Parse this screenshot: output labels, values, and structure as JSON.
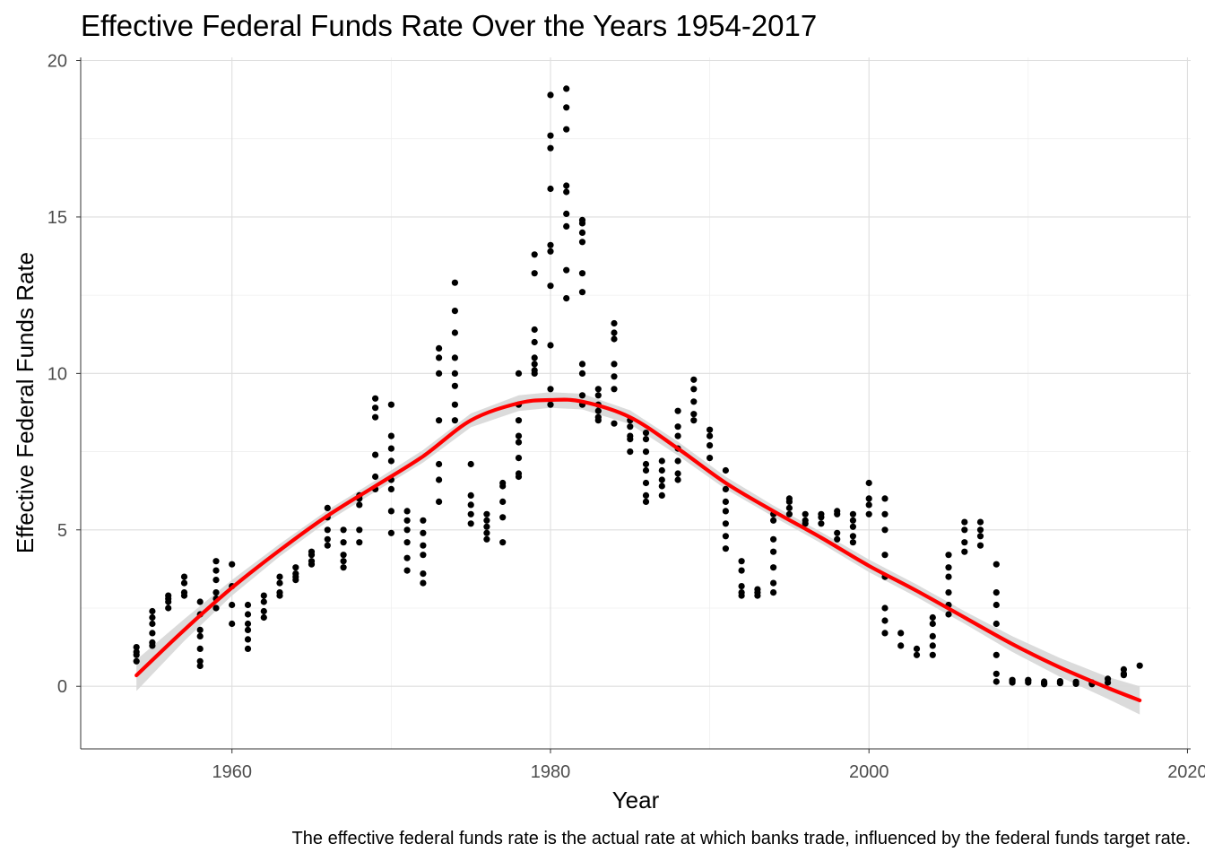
{
  "chart_data": {
    "type": "scatter",
    "title": "Effective Federal Funds Rate Over the Years 1954-2017",
    "xlabel": "Year",
    "ylabel": "Effective Federal Funds Rate",
    "caption": "The effective federal funds rate is the actual rate at which banks trade, influenced by the federal funds target rate.",
    "xlim": [
      1950.5,
      2020.2
    ],
    "ylim": [
      -2,
      20.1
    ],
    "x_ticks": [
      1960,
      1980,
      2000,
      2020
    ],
    "x_tick_labels": [
      "1960",
      "1980",
      "2000",
      "2020"
    ],
    "y_ticks": [
      0,
      5,
      10,
      15,
      20
    ],
    "y_tick_labels": [
      "0",
      "5",
      "10",
      "15",
      "20"
    ],
    "grid": true,
    "legend": "none",
    "points_color": "#000000",
    "trend_color": "#ff0000",
    "band_color": "#d9d9d9",
    "scatter": [
      [
        1954,
        1.25
      ],
      [
        1954,
        1.0
      ],
      [
        1954,
        0.8
      ],
      [
        1954,
        1.1
      ],
      [
        1955,
        1.4
      ],
      [
        1955,
        1.3
      ],
      [
        1955,
        1.7
      ],
      [
        1955,
        2.0
      ],
      [
        1955,
        2.2
      ],
      [
        1955,
        2.4
      ],
      [
        1956,
        2.5
      ],
      [
        1956,
        2.7
      ],
      [
        1956,
        2.8
      ],
      [
        1956,
        2.9
      ],
      [
        1957,
        2.9
      ],
      [
        1957,
        3.0
      ],
      [
        1957,
        3.3
      ],
      [
        1957,
        3.5
      ],
      [
        1958,
        0.65
      ],
      [
        1958,
        0.8
      ],
      [
        1958,
        1.2
      ],
      [
        1958,
        1.6
      ],
      [
        1958,
        1.8
      ],
      [
        1958,
        2.3
      ],
      [
        1958,
        2.7
      ],
      [
        1959,
        2.5
      ],
      [
        1959,
        2.8
      ],
      [
        1959,
        3.0
      ],
      [
        1959,
        3.4
      ],
      [
        1959,
        3.7
      ],
      [
        1959,
        4.0
      ],
      [
        1960,
        2.0
      ],
      [
        1960,
        2.6
      ],
      [
        1960,
        3.2
      ],
      [
        1960,
        3.9
      ],
      [
        1961,
        1.2
      ],
      [
        1961,
        1.5
      ],
      [
        1961,
        1.8
      ],
      [
        1961,
        2.0
      ],
      [
        1961,
        2.3
      ],
      [
        1961,
        2.6
      ],
      [
        1962,
        2.2
      ],
      [
        1962,
        2.4
      ],
      [
        1962,
        2.7
      ],
      [
        1962,
        2.9
      ],
      [
        1963,
        2.9
      ],
      [
        1963,
        3.0
      ],
      [
        1963,
        3.3
      ],
      [
        1963,
        3.5
      ],
      [
        1964,
        3.4
      ],
      [
        1964,
        3.5
      ],
      [
        1964,
        3.6
      ],
      [
        1964,
        3.8
      ],
      [
        1965,
        3.9
      ],
      [
        1965,
        4.0
      ],
      [
        1965,
        4.2
      ],
      [
        1965,
        4.3
      ],
      [
        1966,
        4.5
      ],
      [
        1966,
        4.7
      ],
      [
        1966,
        5.0
      ],
      [
        1966,
        5.4
      ],
      [
        1966,
        5.7
      ],
      [
        1967,
        3.8
      ],
      [
        1967,
        4.0
      ],
      [
        1967,
        4.2
      ],
      [
        1967,
        4.6
      ],
      [
        1967,
        5.0
      ],
      [
        1968,
        4.6
      ],
      [
        1968,
        5.0
      ],
      [
        1968,
        5.8
      ],
      [
        1968,
        6.0
      ],
      [
        1968,
        6.1
      ],
      [
        1969,
        6.3
      ],
      [
        1969,
        6.7
      ],
      [
        1969,
        7.4
      ],
      [
        1969,
        8.6
      ],
      [
        1969,
        8.9
      ],
      [
        1969,
        9.2
      ],
      [
        1970,
        4.9
      ],
      [
        1970,
        5.6
      ],
      [
        1970,
        6.3
      ],
      [
        1970,
        6.6
      ],
      [
        1970,
        7.2
      ],
      [
        1970,
        7.6
      ],
      [
        1970,
        8.0
      ],
      [
        1970,
        9.0
      ],
      [
        1971,
        3.7
      ],
      [
        1971,
        4.1
      ],
      [
        1971,
        4.6
      ],
      [
        1971,
        5.0
      ],
      [
        1971,
        5.3
      ],
      [
        1971,
        5.6
      ],
      [
        1972,
        3.3
      ],
      [
        1972,
        3.6
      ],
      [
        1972,
        4.2
      ],
      [
        1972,
        4.5
      ],
      [
        1972,
        4.9
      ],
      [
        1972,
        5.3
      ],
      [
        1973,
        5.9
      ],
      [
        1973,
        6.6
      ],
      [
        1973,
        7.1
      ],
      [
        1973,
        8.5
      ],
      [
        1973,
        10.0
      ],
      [
        1973,
        10.5
      ],
      [
        1973,
        10.8
      ],
      [
        1974,
        8.5
      ],
      [
        1974,
        9.0
      ],
      [
        1974,
        9.6
      ],
      [
        1974,
        10.0
      ],
      [
        1974,
        10.5
      ],
      [
        1974,
        11.3
      ],
      [
        1974,
        12.0
      ],
      [
        1974,
        12.9
      ],
      [
        1975,
        5.2
      ],
      [
        1975,
        5.5
      ],
      [
        1975,
        5.8
      ],
      [
        1975,
        6.1
      ],
      [
        1975,
        7.1
      ],
      [
        1976,
        4.7
      ],
      [
        1976,
        4.9
      ],
      [
        1976,
        5.1
      ],
      [
        1976,
        5.3
      ],
      [
        1976,
        5.5
      ],
      [
        1977,
        4.6
      ],
      [
        1977,
        5.4
      ],
      [
        1977,
        5.9
      ],
      [
        1977,
        6.4
      ],
      [
        1977,
        6.5
      ],
      [
        1978,
        6.7
      ],
      [
        1978,
        6.8
      ],
      [
        1978,
        7.3
      ],
      [
        1978,
        7.8
      ],
      [
        1978,
        8.0
      ],
      [
        1978,
        8.5
      ],
      [
        1978,
        9.0
      ],
      [
        1978,
        10.0
      ],
      [
        1979,
        10.1
      ],
      [
        1979,
        10.0
      ],
      [
        1979,
        10.3
      ],
      [
        1979,
        10.5
      ],
      [
        1979,
        11.0
      ],
      [
        1979,
        11.4
      ],
      [
        1979,
        13.2
      ],
      [
        1979,
        13.8
      ],
      [
        1980,
        9.0
      ],
      [
        1980,
        9.5
      ],
      [
        1980,
        10.9
      ],
      [
        1980,
        12.8
      ],
      [
        1980,
        13.9
      ],
      [
        1980,
        14.1
      ],
      [
        1980,
        15.9
      ],
      [
        1980,
        17.2
      ],
      [
        1980,
        17.6
      ],
      [
        1980,
        18.9
      ],
      [
        1981,
        12.4
      ],
      [
        1981,
        13.3
      ],
      [
        1981,
        14.7
      ],
      [
        1981,
        15.1
      ],
      [
        1981,
        15.8
      ],
      [
        1981,
        16.0
      ],
      [
        1981,
        17.8
      ],
      [
        1981,
        18.5
      ],
      [
        1981,
        19.1
      ],
      [
        1982,
        9.0
      ],
      [
        1982,
        9.3
      ],
      [
        1982,
        10.0
      ],
      [
        1982,
        10.3
      ],
      [
        1982,
        12.6
      ],
      [
        1982,
        13.2
      ],
      [
        1982,
        14.2
      ],
      [
        1982,
        14.5
      ],
      [
        1982,
        14.8
      ],
      [
        1982,
        14.9
      ],
      [
        1983,
        8.5
      ],
      [
        1983,
        8.6
      ],
      [
        1983,
        8.8
      ],
      [
        1983,
        9.0
      ],
      [
        1983,
        9.3
      ],
      [
        1983,
        9.5
      ],
      [
        1984,
        8.4
      ],
      [
        1984,
        9.5
      ],
      [
        1984,
        9.9
      ],
      [
        1984,
        10.3
      ],
      [
        1984,
        11.1
      ],
      [
        1984,
        11.3
      ],
      [
        1984,
        11.6
      ],
      [
        1985,
        7.5
      ],
      [
        1985,
        7.9
      ],
      [
        1985,
        8.0
      ],
      [
        1985,
        8.3
      ],
      [
        1985,
        8.5
      ],
      [
        1986,
        5.9
      ],
      [
        1986,
        6.1
      ],
      [
        1986,
        6.5
      ],
      [
        1986,
        6.9
      ],
      [
        1986,
        7.1
      ],
      [
        1986,
        7.5
      ],
      [
        1986,
        7.9
      ],
      [
        1986,
        8.1
      ],
      [
        1987,
        6.1
      ],
      [
        1987,
        6.4
      ],
      [
        1987,
        6.6
      ],
      [
        1987,
        6.9
      ],
      [
        1987,
        7.2
      ],
      [
        1988,
        6.6
      ],
      [
        1988,
        6.8
      ],
      [
        1988,
        7.2
      ],
      [
        1988,
        7.6
      ],
      [
        1988,
        8.0
      ],
      [
        1988,
        8.3
      ],
      [
        1988,
        8.8
      ],
      [
        1989,
        8.5
      ],
      [
        1989,
        8.7
      ],
      [
        1989,
        9.1
      ],
      [
        1989,
        9.5
      ],
      [
        1989,
        9.8
      ],
      [
        1990,
        7.3
      ],
      [
        1990,
        7.7
      ],
      [
        1990,
        8.0
      ],
      [
        1990,
        8.2
      ],
      [
        1991,
        4.4
      ],
      [
        1991,
        4.8
      ],
      [
        1991,
        5.2
      ],
      [
        1991,
        5.6
      ],
      [
        1991,
        5.9
      ],
      [
        1991,
        6.3
      ],
      [
        1991,
        6.9
      ],
      [
        1992,
        2.9
      ],
      [
        1992,
        3.0
      ],
      [
        1992,
        3.2
      ],
      [
        1992,
        3.7
      ],
      [
        1992,
        4.0
      ],
      [
        1993,
        2.9
      ],
      [
        1993,
        3.0
      ],
      [
        1993,
        3.1
      ],
      [
        1994,
        3.0
      ],
      [
        1994,
        3.3
      ],
      [
        1994,
        3.8
      ],
      [
        1994,
        4.3
      ],
      [
        1994,
        4.7
      ],
      [
        1994,
        5.3
      ],
      [
        1994,
        5.5
      ],
      [
        1995,
        5.5
      ],
      [
        1995,
        5.7
      ],
      [
        1995,
        5.9
      ],
      [
        1995,
        6.0
      ],
      [
        1996,
        5.2
      ],
      [
        1996,
        5.3
      ],
      [
        1996,
        5.5
      ],
      [
        1997,
        5.2
      ],
      [
        1997,
        5.4
      ],
      [
        1997,
        5.5
      ],
      [
        1998,
        4.7
      ],
      [
        1998,
        4.9
      ],
      [
        1998,
        5.5
      ],
      [
        1998,
        5.6
      ],
      [
        1999,
        4.6
      ],
      [
        1999,
        4.8
      ],
      [
        1999,
        5.1
      ],
      [
        1999,
        5.3
      ],
      [
        1999,
        5.5
      ],
      [
        2000,
        5.5
      ],
      [
        2000,
        5.8
      ],
      [
        2000,
        6.0
      ],
      [
        2000,
        6.5
      ],
      [
        2001,
        1.7
      ],
      [
        2001,
        2.1
      ],
      [
        2001,
        2.5
      ],
      [
        2001,
        3.5
      ],
      [
        2001,
        4.2
      ],
      [
        2001,
        5.0
      ],
      [
        2001,
        5.5
      ],
      [
        2001,
        6.0
      ],
      [
        2002,
        1.3
      ],
      [
        2002,
        1.7
      ],
      [
        2003,
        1.0
      ],
      [
        2003,
        1.2
      ],
      [
        2004,
        1.0
      ],
      [
        2004,
        1.3
      ],
      [
        2004,
        1.6
      ],
      [
        2004,
        2.0
      ],
      [
        2004,
        2.2
      ],
      [
        2005,
        2.3
      ],
      [
        2005,
        2.6
      ],
      [
        2005,
        3.0
      ],
      [
        2005,
        3.5
      ],
      [
        2005,
        3.8
      ],
      [
        2005,
        4.2
      ],
      [
        2006,
        4.3
      ],
      [
        2006,
        4.6
      ],
      [
        2006,
        5.0
      ],
      [
        2006,
        5.25
      ],
      [
        2007,
        4.5
      ],
      [
        2007,
        4.8
      ],
      [
        2007,
        5.0
      ],
      [
        2007,
        5.25
      ],
      [
        2008,
        0.15
      ],
      [
        2008,
        0.4
      ],
      [
        2008,
        1.0
      ],
      [
        2008,
        2.0
      ],
      [
        2008,
        2.6
      ],
      [
        2008,
        3.0
      ],
      [
        2008,
        3.9
      ],
      [
        2009,
        0.12
      ],
      [
        2009,
        0.16
      ],
      [
        2009,
        0.2
      ],
      [
        2010,
        0.12
      ],
      [
        2010,
        0.18
      ],
      [
        2010,
        0.2
      ],
      [
        2011,
        0.07
      ],
      [
        2011,
        0.1
      ],
      [
        2011,
        0.15
      ],
      [
        2012,
        0.1
      ],
      [
        2012,
        0.16
      ],
      [
        2013,
        0.08
      ],
      [
        2013,
        0.14
      ],
      [
        2014,
        0.07
      ],
      [
        2014,
        0.12
      ],
      [
        2015,
        0.12
      ],
      [
        2015,
        0.24
      ],
      [
        2016,
        0.36
      ],
      [
        2016,
        0.4
      ],
      [
        2016,
        0.54
      ],
      [
        2017,
        0.66
      ]
    ],
    "trend": {
      "method": "loess",
      "x": [
        1954,
        1957,
        1960,
        1963,
        1966,
        1969,
        1972,
        1975,
        1978,
        1980,
        1982,
        1985,
        1988,
        1991,
        1994,
        1997,
        2000,
        2003,
        2006,
        2009,
        2012,
        2015,
        2017
      ],
      "y": [
        0.35,
        1.8,
        3.15,
        4.35,
        5.45,
        6.4,
        7.35,
        8.5,
        9.05,
        9.15,
        9.1,
        8.6,
        7.6,
        6.5,
        5.6,
        4.75,
        3.85,
        3.05,
        2.2,
        1.35,
        0.6,
        -0.05,
        -0.45
      ],
      "band_halfwidth": [
        0.5,
        0.35,
        0.25,
        0.2,
        0.18,
        0.18,
        0.2,
        0.22,
        0.25,
        0.25,
        0.25,
        0.22,
        0.22,
        0.2,
        0.18,
        0.18,
        0.2,
        0.2,
        0.2,
        0.25,
        0.3,
        0.35,
        0.45
      ]
    }
  }
}
